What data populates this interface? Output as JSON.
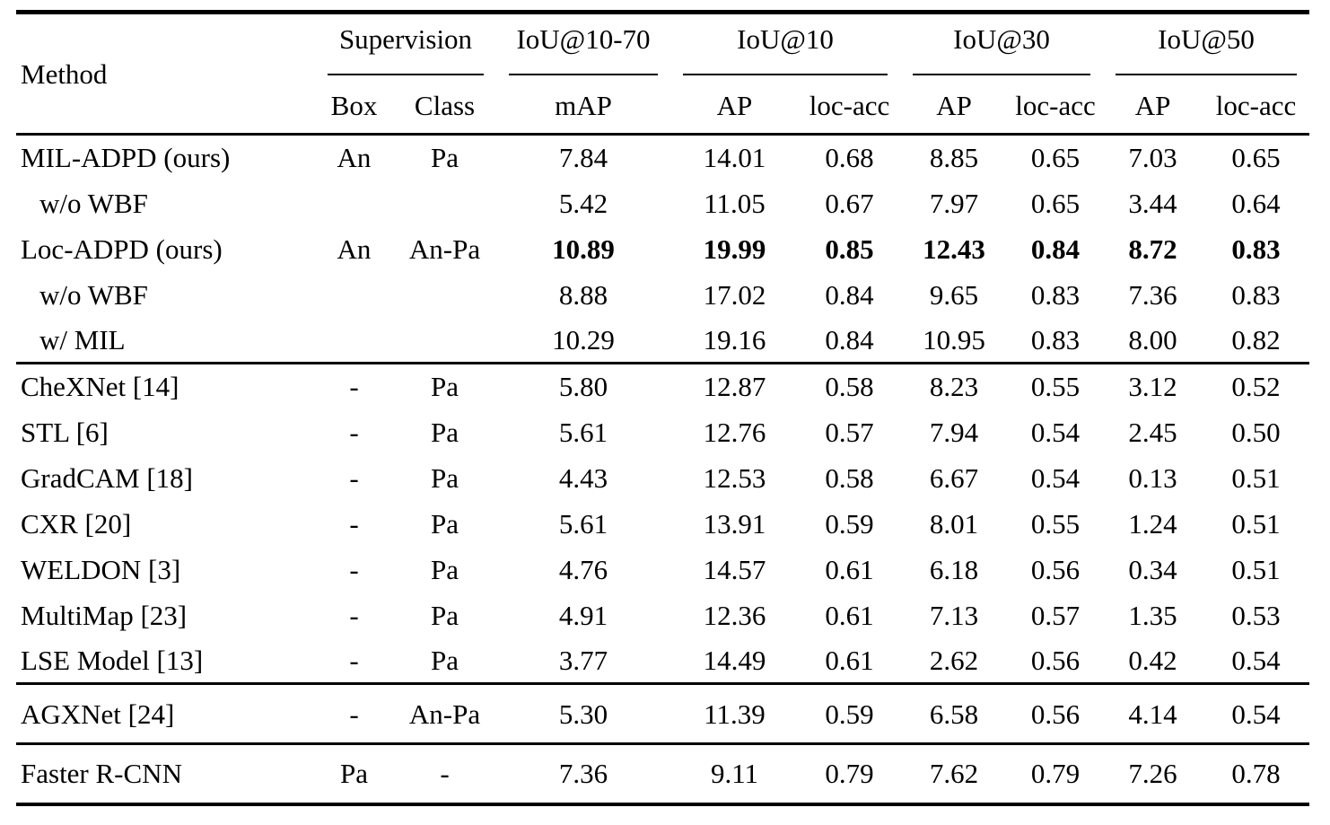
{
  "colors": {
    "text": "#000000",
    "background": "#ffffff",
    "rule": "#000000"
  },
  "table": {
    "header": {
      "method": "Method",
      "supervision": {
        "label": "Supervision",
        "sub": [
          "Box",
          "Class"
        ]
      },
      "iou_10_70": {
        "label": "IoU@10-70",
        "sub": [
          "mAP"
        ]
      },
      "iou_10": {
        "label": "IoU@10",
        "sub": [
          "AP",
          "loc-acc"
        ]
      },
      "iou_30": {
        "label": "IoU@30",
        "sub": [
          "AP",
          "loc-acc"
        ]
      },
      "iou_50": {
        "label": "IoU@50",
        "sub": [
          "AP",
          "loc-acc"
        ]
      }
    },
    "sections": [
      {
        "rows": [
          {
            "method": "MIL-ADPD (ours)",
            "indent": false,
            "bold": false,
            "values": [
              "An",
              "Pa",
              "7.84",
              "14.01",
              "0.68",
              "8.85",
              "0.65",
              "7.03",
              "0.65"
            ]
          },
          {
            "method": "w/o WBF",
            "indent": true,
            "bold": false,
            "values": [
              "",
              "",
              "5.42",
              "11.05",
              "0.67",
              "7.97",
              "0.65",
              "3.44",
              "0.64"
            ]
          },
          {
            "method": "Loc-ADPD (ours)",
            "indent": false,
            "bold": true,
            "values": [
              "An",
              "An-Pa",
              "10.89",
              "19.99",
              "0.85",
              "12.43",
              "0.84",
              "8.72",
              "0.83"
            ]
          },
          {
            "method": "w/o WBF",
            "indent": true,
            "bold": false,
            "values": [
              "",
              "",
              "8.88",
              "17.02",
              "0.84",
              "9.65",
              "0.83",
              "7.36",
              "0.83"
            ]
          },
          {
            "method": "w/ MIL",
            "indent": true,
            "bold": false,
            "values": [
              "",
              "",
              "10.29",
              "19.16",
              "0.84",
              "10.95",
              "0.83",
              "8.00",
              "0.82"
            ]
          }
        ]
      },
      {
        "rows": [
          {
            "method": "CheXNet [14]",
            "indent": false,
            "bold": false,
            "values": [
              "-",
              "Pa",
              "5.80",
              "12.87",
              "0.58",
              "8.23",
              "0.55",
              "3.12",
              "0.52"
            ]
          },
          {
            "method": "STL [6]",
            "indent": false,
            "bold": false,
            "values": [
              "-",
              "Pa",
              "5.61",
              "12.76",
              "0.57",
              "7.94",
              "0.54",
              "2.45",
              "0.50"
            ]
          },
          {
            "method": "GradCAM [18]",
            "indent": false,
            "bold": false,
            "values": [
              "-",
              "Pa",
              "4.43",
              "12.53",
              "0.58",
              "6.67",
              "0.54",
              "0.13",
              "0.51"
            ]
          },
          {
            "method": "CXR [20]",
            "indent": false,
            "bold": false,
            "values": [
              "-",
              "Pa",
              "5.61",
              "13.91",
              "0.59",
              "8.01",
              "0.55",
              "1.24",
              "0.51"
            ]
          },
          {
            "method": "WELDON [3]",
            "indent": false,
            "bold": false,
            "values": [
              "-",
              "Pa",
              "4.76",
              "14.57",
              "0.61",
              "6.18",
              "0.56",
              "0.34",
              "0.51"
            ]
          },
          {
            "method": "MultiMap [23]",
            "indent": false,
            "bold": false,
            "values": [
              "-",
              "Pa",
              "4.91",
              "12.36",
              "0.61",
              "7.13",
              "0.57",
              "1.35",
              "0.53"
            ]
          },
          {
            "method": "LSE Model [13]",
            "indent": false,
            "bold": false,
            "values": [
              "-",
              "Pa",
              "3.77",
              "14.49",
              "0.61",
              "2.62",
              "0.56",
              "0.42",
              "0.54"
            ]
          }
        ]
      },
      {
        "rows": [
          {
            "method": "AGXNet [24]",
            "indent": false,
            "bold": false,
            "values": [
              "-",
              "An-Pa",
              "5.30",
              "11.39",
              "0.59",
              "6.58",
              "0.56",
              "4.14",
              "0.54"
            ]
          }
        ]
      },
      {
        "rows": [
          {
            "method": "Faster R-CNN",
            "indent": false,
            "bold": false,
            "values": [
              "Pa",
              "-",
              "7.36",
              "9.11",
              "0.79",
              "7.62",
              "0.79",
              "7.26",
              "0.78"
            ]
          }
        ]
      }
    ]
  }
}
